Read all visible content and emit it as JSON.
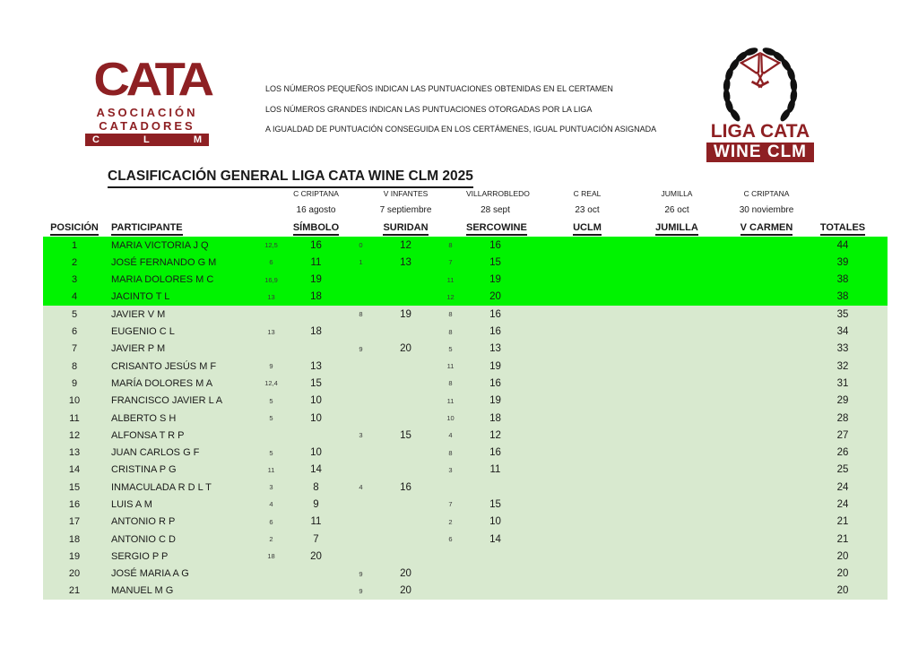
{
  "logo_left": {
    "brand": "CATA",
    "line1": "ASOCIACIÓN",
    "line2": "CATADORES",
    "bar_letters": [
      "C",
      "L",
      "M"
    ]
  },
  "notes": {
    "line1": "LOS NÚMEROS PEQUEÑOS INDICAN LAS PUNTUACIONES OBTENIDAS EN EL CERTAMEN",
    "line2": "LOS NÚMEROS GRANDES INDICAN LAS PUNTUACIONES OTORGADAS POR LA LIGA",
    "line3": "A IGUALDAD DE PUNTUACIÓN CONSEGUIDA EN LOS CERTÁMENES, IGUAL PUNTUACIÓN ASIGNADA"
  },
  "logo_right": {
    "line1": "LIGA CATA",
    "line2": "WINE CLM"
  },
  "title": "CLASIFICACIÓN GENERAL LIGA CATA WINE CLM 2025",
  "colors": {
    "brand_red": "#8e2023",
    "highlight_green": "#00f300",
    "row_green": "#d8e9cf",
    "wreath_black": "#111111"
  },
  "table": {
    "headers": {
      "position": "POSICIÓN",
      "participant": "PARTICIPANTE",
      "totals": "TOTALES"
    },
    "events": [
      {
        "venue": "C CRIPTANA",
        "date": "16 agosto",
        "name": "SÍMBOLO"
      },
      {
        "venue": "V INFANTES",
        "date": "7 septiembre",
        "name": "SURIDAN"
      },
      {
        "venue": "VILLARROBLEDO",
        "date": "28 sept",
        "name": "SERCOWINE"
      },
      {
        "venue": "C REAL",
        "date": "23 oct",
        "name": "UCLM"
      },
      {
        "venue": "JUMILLA",
        "date": "26 oct",
        "name": "JUMILLA"
      },
      {
        "venue": "C CRIPTANA",
        "date": "30 noviembre",
        "name": "V CARMEN"
      }
    ],
    "rows": [
      {
        "pos": "1",
        "name": "MARIA VICTORIA J Q",
        "scores": [
          [
            "12,5",
            "16"
          ],
          [
            "0",
            "12"
          ],
          [
            "8",
            "16"
          ],
          [
            "",
            ""
          ],
          [
            "",
            ""
          ],
          [
            "",
            ""
          ]
        ],
        "total": "44",
        "highlight": true
      },
      {
        "pos": "2",
        "name": "JOSÉ FERNANDO G M",
        "scores": [
          [
            "6",
            "11"
          ],
          [
            "1",
            "13"
          ],
          [
            "7",
            "15"
          ],
          [
            "",
            ""
          ],
          [
            "",
            ""
          ],
          [
            "",
            ""
          ]
        ],
        "total": "39",
        "highlight": true
      },
      {
        "pos": "3",
        "name": "MARIA DOLORES M C",
        "scores": [
          [
            "16,9",
            "19"
          ],
          [
            "",
            ""
          ],
          [
            "11",
            "19"
          ],
          [
            "",
            ""
          ],
          [
            "",
            ""
          ],
          [
            "",
            ""
          ]
        ],
        "total": "38",
        "highlight": true
      },
      {
        "pos": "4",
        "name": "JACINTO T L",
        "scores": [
          [
            "13",
            "18"
          ],
          [
            "",
            ""
          ],
          [
            "12",
            "20"
          ],
          [
            "",
            ""
          ],
          [
            "",
            ""
          ],
          [
            "",
            ""
          ]
        ],
        "total": "38",
        "highlight": true
      },
      {
        "pos": "5",
        "name": "JAVIER V M",
        "scores": [
          [
            "",
            ""
          ],
          [
            "8",
            "19"
          ],
          [
            "8",
            "16"
          ],
          [
            "",
            ""
          ],
          [
            "",
            ""
          ],
          [
            "",
            ""
          ]
        ],
        "total": "35",
        "highlight": false
      },
      {
        "pos": "6",
        "name": "EUGENIO C L",
        "scores": [
          [
            "13",
            "18"
          ],
          [
            "",
            ""
          ],
          [
            "8",
            "16"
          ],
          [
            "",
            ""
          ],
          [
            "",
            ""
          ],
          [
            "",
            ""
          ]
        ],
        "total": "34",
        "highlight": false
      },
      {
        "pos": "7",
        "name": "JAVIER P M",
        "scores": [
          [
            "",
            ""
          ],
          [
            "9",
            "20"
          ],
          [
            "5",
            "13"
          ],
          [
            "",
            ""
          ],
          [
            "",
            ""
          ],
          [
            "",
            ""
          ]
        ],
        "total": "33",
        "highlight": false
      },
      {
        "pos": "8",
        "name": "CRISANTO JESÚS M F",
        "scores": [
          [
            "9",
            "13"
          ],
          [
            "",
            ""
          ],
          [
            "11",
            "19"
          ],
          [
            "",
            ""
          ],
          [
            "",
            ""
          ],
          [
            "",
            ""
          ]
        ],
        "total": "32",
        "highlight": false
      },
      {
        "pos": "9",
        "name": "MARÍA DOLORES M A",
        "scores": [
          [
            "12,4",
            "15"
          ],
          [
            "",
            ""
          ],
          [
            "8",
            "16"
          ],
          [
            "",
            ""
          ],
          [
            "",
            ""
          ],
          [
            "",
            ""
          ]
        ],
        "total": "31",
        "highlight": false
      },
      {
        "pos": "10",
        "name": "FRANCISCO JAVIER L A",
        "scores": [
          [
            "5",
            "10"
          ],
          [
            "",
            ""
          ],
          [
            "11",
            "19"
          ],
          [
            "",
            ""
          ],
          [
            "",
            ""
          ],
          [
            "",
            ""
          ]
        ],
        "total": "29",
        "highlight": false
      },
      {
        "pos": "11",
        "name": "ALBERTO S H",
        "scores": [
          [
            "5",
            "10"
          ],
          [
            "",
            ""
          ],
          [
            "10",
            "18"
          ],
          [
            "",
            ""
          ],
          [
            "",
            ""
          ],
          [
            "",
            ""
          ]
        ],
        "total": "28",
        "highlight": false
      },
      {
        "pos": "12",
        "name": "ALFONSA T R P",
        "scores": [
          [
            "",
            ""
          ],
          [
            "3",
            "15"
          ],
          [
            "4",
            "12"
          ],
          [
            "",
            ""
          ],
          [
            "",
            ""
          ],
          [
            "",
            ""
          ]
        ],
        "total": "27",
        "highlight": false
      },
      {
        "pos": "13",
        "name": "JUAN CARLOS G F",
        "scores": [
          [
            "5",
            "10"
          ],
          [
            "",
            ""
          ],
          [
            "8",
            "16"
          ],
          [
            "",
            ""
          ],
          [
            "",
            ""
          ],
          [
            "",
            ""
          ]
        ],
        "total": "26",
        "highlight": false
      },
      {
        "pos": "14",
        "name": "CRISTINA P G",
        "scores": [
          [
            "11",
            "14"
          ],
          [
            "",
            ""
          ],
          [
            "3",
            "11"
          ],
          [
            "",
            ""
          ],
          [
            "",
            ""
          ],
          [
            "",
            ""
          ]
        ],
        "total": "25",
        "highlight": false
      },
      {
        "pos": "15",
        "name": "INMACULADA R D L T",
        "scores": [
          [
            "3",
            "8"
          ],
          [
            "4",
            "16"
          ],
          [
            "",
            ""
          ],
          [
            "",
            ""
          ],
          [
            "",
            ""
          ],
          [
            "",
            ""
          ]
        ],
        "total": "24",
        "highlight": false
      },
      {
        "pos": "16",
        "name": "LUIS A M",
        "scores": [
          [
            "4",
            "9"
          ],
          [
            "",
            ""
          ],
          [
            "7",
            "15"
          ],
          [
            "",
            ""
          ],
          [
            "",
            ""
          ],
          [
            "",
            ""
          ]
        ],
        "total": "24",
        "highlight": false
      },
      {
        "pos": "17",
        "name": "ANTONIO R P",
        "scores": [
          [
            "6",
            "11"
          ],
          [
            "",
            ""
          ],
          [
            "2",
            "10"
          ],
          [
            "",
            ""
          ],
          [
            "",
            ""
          ],
          [
            "",
            ""
          ]
        ],
        "total": "21",
        "highlight": false
      },
      {
        "pos": "18",
        "name": "ANTONIO C D",
        "scores": [
          [
            "2",
            "7"
          ],
          [
            "",
            ""
          ],
          [
            "6",
            "14"
          ],
          [
            "",
            ""
          ],
          [
            "",
            ""
          ],
          [
            "",
            ""
          ]
        ],
        "total": "21",
        "highlight": false
      },
      {
        "pos": "19",
        "name": "SERGIO P P",
        "scores": [
          [
            "18",
            "20"
          ],
          [
            "",
            ""
          ],
          [
            "",
            ""
          ],
          [
            "",
            ""
          ],
          [
            "",
            ""
          ],
          [
            "",
            ""
          ]
        ],
        "total": "20",
        "highlight": false
      },
      {
        "pos": "20",
        "name": "JOSÉ MARIA A G",
        "scores": [
          [
            "",
            ""
          ],
          [
            "9",
            "20"
          ],
          [
            "",
            ""
          ],
          [
            "",
            ""
          ],
          [
            "",
            ""
          ],
          [
            "",
            ""
          ]
        ],
        "total": "20",
        "highlight": false
      },
      {
        "pos": "21",
        "name": "MANUEL M G",
        "scores": [
          [
            "",
            ""
          ],
          [
            "9",
            "20"
          ],
          [
            "",
            ""
          ],
          [
            "",
            ""
          ],
          [
            "",
            ""
          ],
          [
            "",
            ""
          ]
        ],
        "total": "20",
        "highlight": false
      }
    ]
  }
}
